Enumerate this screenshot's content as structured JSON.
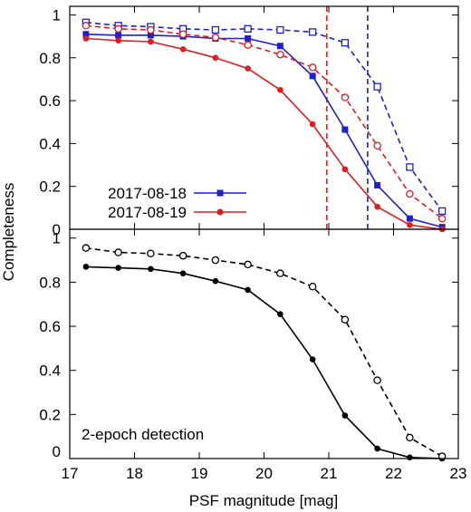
{
  "chart_data": [
    {
      "type": "line",
      "ylabel": "Completeness",
      "xlim": [
        17,
        23
      ],
      "ylim": [
        0,
        1.04
      ],
      "yticks": [
        "0",
        "0.2",
        "0.4",
        "0.6",
        "0.8",
        "1"
      ],
      "legend_position": "bottom-left",
      "series": [
        {
          "name": "2017-08-18",
          "color": "#1f1fcc",
          "style": "solid",
          "marker": "filled-square",
          "x": [
            17.25,
            17.75,
            18.25,
            18.75,
            19.25,
            19.75,
            20.25,
            20.75,
            21.25,
            21.75,
            22.25,
            22.75
          ],
          "y": [
            0.91,
            0.905,
            0.905,
            0.9,
            0.89,
            0.89,
            0.855,
            0.715,
            0.465,
            0.205,
            0.05,
            0.01
          ]
        },
        {
          "name": "2017-08-19",
          "color": "#dd1f1f",
          "style": "solid",
          "marker": "filled-circle",
          "x": [
            17.25,
            17.75,
            18.25,
            18.75,
            19.25,
            19.75,
            20.25,
            20.75,
            21.25,
            21.75,
            22.25,
            22.75
          ],
          "y": [
            0.89,
            0.88,
            0.875,
            0.84,
            0.8,
            0.75,
            0.65,
            0.49,
            0.28,
            0.105,
            0.02,
            0.0
          ]
        },
        {
          "color": "#1f1fcc",
          "style": "dashed",
          "marker": "open-square",
          "x": [
            17.25,
            17.75,
            18.25,
            18.75,
            19.25,
            19.75,
            20.25,
            20.75,
            21.25,
            21.75,
            22.25,
            22.75
          ],
          "y": [
            0.965,
            0.95,
            0.945,
            0.935,
            0.93,
            0.935,
            0.93,
            0.92,
            0.87,
            0.665,
            0.29,
            0.085
          ]
        },
        {
          "color": "#dd1f1f",
          "style": "dashed",
          "marker": "open-circle",
          "x": [
            17.25,
            17.75,
            18.25,
            18.75,
            19.25,
            19.75,
            20.25,
            20.75,
            21.25,
            21.75,
            22.25,
            22.75
          ],
          "y": [
            0.95,
            0.935,
            0.93,
            0.91,
            0.895,
            0.86,
            0.815,
            0.755,
            0.615,
            0.39,
            0.165,
            0.05
          ]
        }
      ],
      "vlines": [
        {
          "x": 20.97,
          "color": "#dd1f1f"
        },
        {
          "x": 21.6,
          "color": "#1f1fcc"
        }
      ]
    },
    {
      "type": "line",
      "xlabel": "PSF magnitude [mag]",
      "xlim": [
        17,
        23
      ],
      "ylim": [
        0,
        1.04
      ],
      "xticks": [
        "17",
        "18",
        "19",
        "20",
        "21",
        "22",
        "23"
      ],
      "yticks": [
        "0",
        "0.2",
        "0.4",
        "0.6",
        "0.8",
        "1"
      ],
      "annotation": "2-epoch detection",
      "series": [
        {
          "color": "#000000",
          "style": "solid",
          "marker": "filled-circle",
          "x": [
            17.25,
            17.75,
            18.25,
            18.75,
            19.25,
            19.75,
            20.25,
            20.75,
            21.25,
            21.75,
            22.25,
            22.75
          ],
          "y": [
            0.87,
            0.865,
            0.86,
            0.84,
            0.805,
            0.765,
            0.655,
            0.45,
            0.195,
            0.045,
            0.005,
            0.0
          ]
        },
        {
          "color": "#000000",
          "style": "dashed",
          "marker": "open-circle",
          "x": [
            17.25,
            17.75,
            18.25,
            18.75,
            19.25,
            19.75,
            20.25,
            20.75,
            21.25,
            21.75,
            22.25,
            22.75
          ],
          "y": [
            0.955,
            0.935,
            0.93,
            0.92,
            0.9,
            0.88,
            0.84,
            0.78,
            0.63,
            0.355,
            0.095,
            0.01
          ]
        }
      ]
    }
  ]
}
